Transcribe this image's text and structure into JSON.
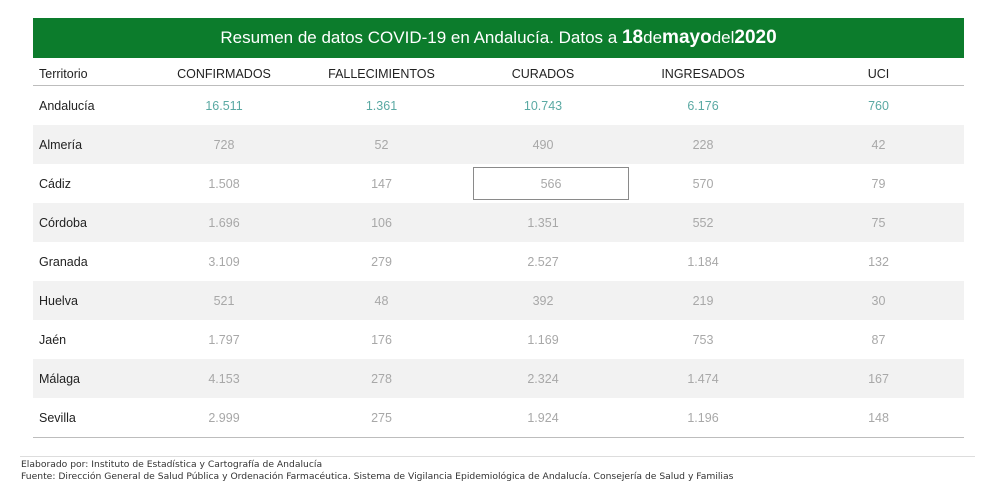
{
  "header": {
    "title_prefix": "Resumen de datos COVID-19 en Andalucía. Datos a ",
    "day": "18",
    "de1": " de ",
    "month": "mayo",
    "del": " del ",
    "year": "2020"
  },
  "columns": [
    "Territorio",
    "CONFIRMADOS",
    "FALLECIMIENTOS",
    "CURADOS",
    "INGRESADOS",
    "UCI"
  ],
  "rows": [
    [
      "Andalucía",
      "16.511",
      "1.361",
      "10.743",
      "6.176",
      "760"
    ],
    [
      "Almería",
      "728",
      "52",
      "490",
      "228",
      "42"
    ],
    [
      "Cádiz",
      "1.508",
      "147",
      "566",
      "570",
      "79"
    ],
    [
      "Córdoba",
      "1.696",
      "106",
      "1.351",
      "552",
      "75"
    ],
    [
      "Granada",
      "3.109",
      "279",
      "2.527",
      "1.184",
      "132"
    ],
    [
      "Huelva",
      "521",
      "48",
      "392",
      "219",
      "30"
    ],
    [
      "Jaén",
      "1.797",
      "176",
      "1.169",
      "753",
      "87"
    ],
    [
      "Málaga",
      "4.153",
      "278",
      "2.324",
      "1.474",
      "167"
    ],
    [
      "Sevilla",
      "2.999",
      "275",
      "1.924",
      "1.196",
      "148"
    ]
  ],
  "footer": {
    "line1": "Elaborado por: Instituto de Estadística y Cartografía de Andalucía",
    "line2": "Fuente: Dirección General de Salud Pública y Ordenación Farmacéutica. Sistema de Vigilancia Epidemiológica de Andalucía. Consejería de Salud y Familias"
  },
  "colors": {
    "banner": "#0c7c2c",
    "total_values": "#5aa9a3",
    "values": "#a8a8a8",
    "stripe": "#f2f2f2"
  },
  "chart_data": {
    "type": "table",
    "columns": [
      "Territorio",
      "CONFIRMADOS",
      "FALLECIMIENTOS",
      "CURADOS",
      "INGRESADOS",
      "UCI"
    ],
    "rows": [
      [
        "Andalucía",
        16511,
        1361,
        10743,
        6176,
        760
      ],
      [
        "Almería",
        728,
        52,
        490,
        228,
        42
      ],
      [
        "Cádiz",
        1508,
        147,
        566,
        570,
        79
      ],
      [
        "Córdoba",
        1696,
        106,
        1351,
        552,
        75
      ],
      [
        "Granada",
        3109,
        279,
        2527,
        1184,
        132
      ],
      [
        "Huelva",
        521,
        48,
        392,
        219,
        30
      ],
      [
        "Jaén",
        1797,
        176,
        1169,
        753,
        87
      ],
      [
        "Málaga",
        4153,
        278,
        2324,
        1474,
        167
      ],
      [
        "Sevilla",
        2999,
        275,
        1924,
        1196,
        148
      ]
    ]
  }
}
